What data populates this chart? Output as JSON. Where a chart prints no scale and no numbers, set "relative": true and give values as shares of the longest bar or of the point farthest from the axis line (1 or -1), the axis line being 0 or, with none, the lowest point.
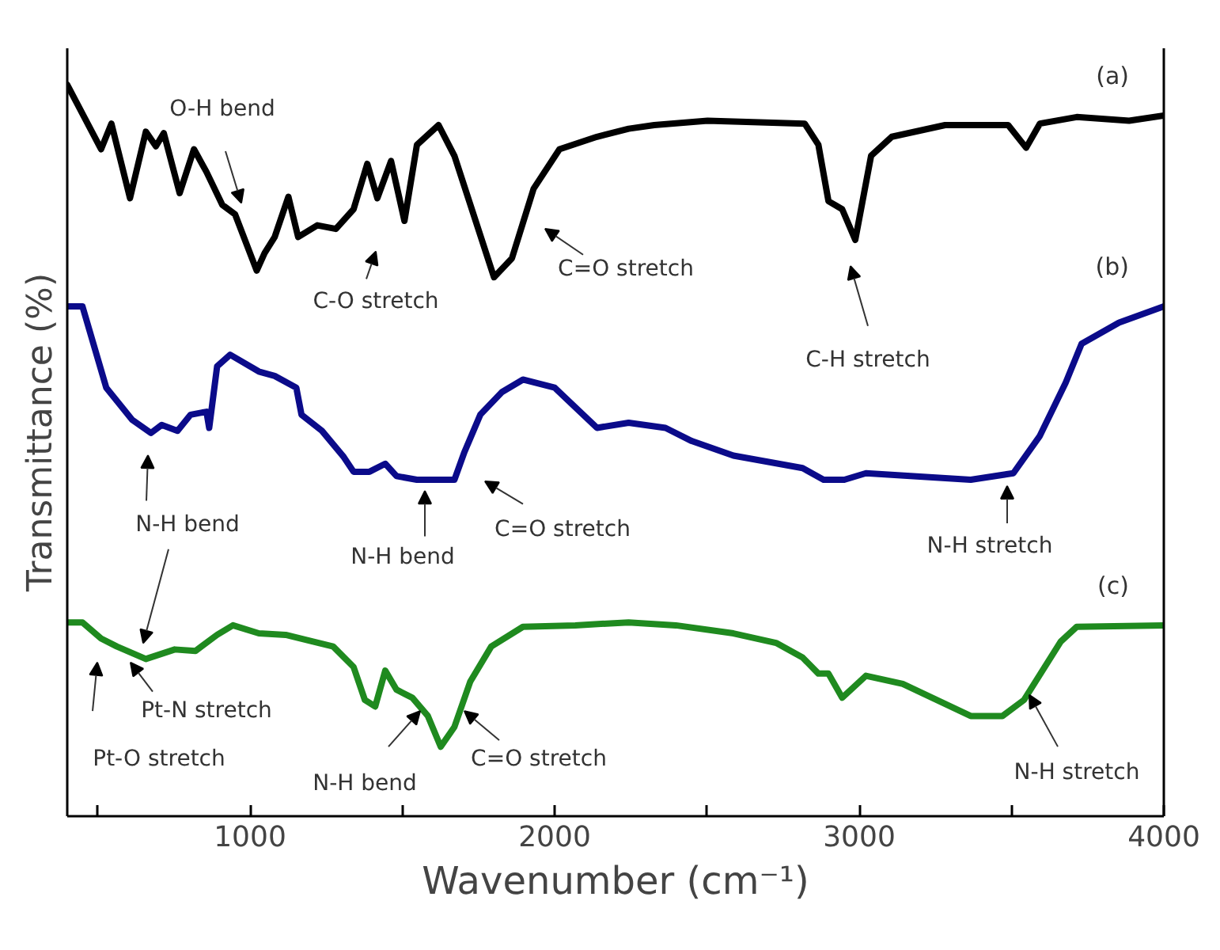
{
  "chart_data": {
    "type": "line",
    "relative": true,
    "xlabel": "Wavenumber (cm⁻¹)",
    "ylabel": "Transmittance (%)",
    "xlim": [
      400,
      4000
    ],
    "xticks": [
      {
        "value": 500,
        "label": null
      },
      1000,
      {
        "value": 1500,
        "label": null
      },
      2000,
      {
        "value": 2500,
        "label": null
      },
      3000,
      {
        "value": 3500,
        "label": null
      },
      4000
    ],
    "grid": false,
    "legend": false,
    "tick_labels": "x",
    "marker": "none",
    "line_style": "solid",
    "series": [
      {
        "name": "(a)",
        "color": "#000000",
        "x": [
          400,
          511,
          545,
          606,
          658,
          691,
          717,
          769,
          816,
          857,
          909,
          951,
          1022,
          1048,
          1081,
          1126,
          1158,
          1221,
          1282,
          1340,
          1385,
          1418,
          1463,
          1507,
          1548,
          1619,
          1671,
          1801,
          1860,
          1931,
          2016,
          2139,
          2243,
          2327,
          2502,
          2821,
          2866,
          2899,
          2944,
          2987,
          3039,
          3107,
          3282,
          3489,
          3548,
          3593,
          3714,
          3886,
          4000
        ],
        "values": [
          1.0,
          0.912,
          0.947,
          0.845,
          0.936,
          0.916,
          0.934,
          0.852,
          0.912,
          0.881,
          0.836,
          0.823,
          0.746,
          0.77,
          0.792,
          0.847,
          0.792,
          0.808,
          0.803,
          0.83,
          0.892,
          0.845,
          0.896,
          0.814,
          0.918,
          0.945,
          0.903,
          0.737,
          0.763,
          0.858,
          0.912,
          0.929,
          0.94,
          0.945,
          0.951,
          0.947,
          0.918,
          0.841,
          0.83,
          0.788,
          0.903,
          0.929,
          0.945,
          0.945,
          0.914,
          0.947,
          0.956,
          0.951,
          0.958
        ]
      },
      {
        "name": "(b)",
        "color": "#0b0b8a",
        "x": [
          400,
          450,
          528,
          613,
          675,
          710,
          762,
          805,
          857,
          866,
          892,
          935,
          1029,
          1081,
          1152,
          1169,
          1236,
          1308,
          1340,
          1392,
          1444,
          1481,
          1548,
          1671,
          1704,
          1756,
          1827,
          1896,
          2000,
          2139,
          2243,
          2364,
          2450,
          2587,
          2814,
          2883,
          2951,
          3022,
          3366,
          3506,
          3593,
          3678,
          3730,
          3853,
          4000
        ],
        "values": [
          0.697,
          0.697,
          0.586,
          0.542,
          0.524,
          0.535,
          0.527,
          0.549,
          0.553,
          0.531,
          0.615,
          0.631,
          0.608,
          0.602,
          0.586,
          0.549,
          0.527,
          0.491,
          0.471,
          0.471,
          0.482,
          0.465,
          0.46,
          0.46,
          0.498,
          0.549,
          0.58,
          0.597,
          0.586,
          0.531,
          0.538,
          0.531,
          0.513,
          0.493,
          0.476,
          0.46,
          0.46,
          0.469,
          0.46,
          0.469,
          0.52,
          0.593,
          0.646,
          0.675,
          0.697
        ]
      },
      {
        "name": "(c)",
        "color": "#1f8a1f",
        "x": [
          400,
          450,
          511,
          563,
          658,
          753,
          821,
          892,
          944,
          1029,
          1117,
          1204,
          1273,
          1340,
          1377,
          1411,
          1444,
          1481,
          1533,
          1584,
          1626,
          1671,
          1723,
          1792,
          1896,
          2068,
          2243,
          2398,
          2587,
          2727,
          2814,
          2866,
          2899,
          2944,
          3022,
          3143,
          3366,
          3470,
          3541,
          3662,
          3714,
          4000
        ],
        "values": [
          0.265,
          0.265,
          0.243,
          0.232,
          0.215,
          0.228,
          0.226,
          0.248,
          0.261,
          0.25,
          0.248,
          0.239,
          0.232,
          0.204,
          0.159,
          0.15,
          0.199,
          0.173,
          0.162,
          0.137,
          0.095,
          0.122,
          0.184,
          0.232,
          0.259,
          0.261,
          0.265,
          0.261,
          0.25,
          0.237,
          0.217,
          0.195,
          0.195,
          0.162,
          0.192,
          0.181,
          0.137,
          0.137,
          0.159,
          0.239,
          0.259,
          0.261
        ]
      }
    ],
    "annotations": [
      "O-H bend",
      "C-O stretch",
      "C=O stretch",
      "C-H stretch",
      "N-H bend",
      "N-H bend",
      "C=O stretch",
      "N-H stretch",
      "Pt-O stretch",
      "Pt-N stretch",
      "N-H bend",
      "C=O stretch",
      "N-H stretch"
    ]
  }
}
